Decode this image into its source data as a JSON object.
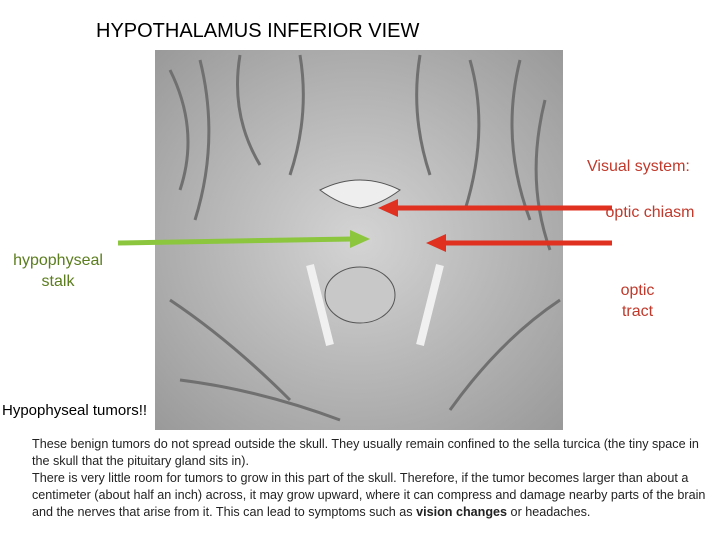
{
  "title": "HYPOTHALAMUS INFERIOR VIEW",
  "labels": {
    "visual_system": "Visual system:",
    "optic_chiasm": "optic chiasm",
    "optic_tract": "optic tract",
    "hypophyseal_stalk": "hypophyseal stalk"
  },
  "heading": "Hypophyseal tumors!!",
  "paragraphs": [
    [
      "These benign tumors do not spread outside the skull. They usually remain confined to the sella turcica (the tiny space in the skull that the pituitary gland sits in)."
    ],
    [
      "There is very little room for tumors to grow in this part of the skull. Therefore, if the tumor becomes larger than about a centimeter (about half an inch) across, it may grow upward, where it can compress and damage nearby parts of the brain and the nerves that arise from it. This can lead to symptoms such as ",
      "vision changes",
      " or headaches."
    ]
  ]
}
